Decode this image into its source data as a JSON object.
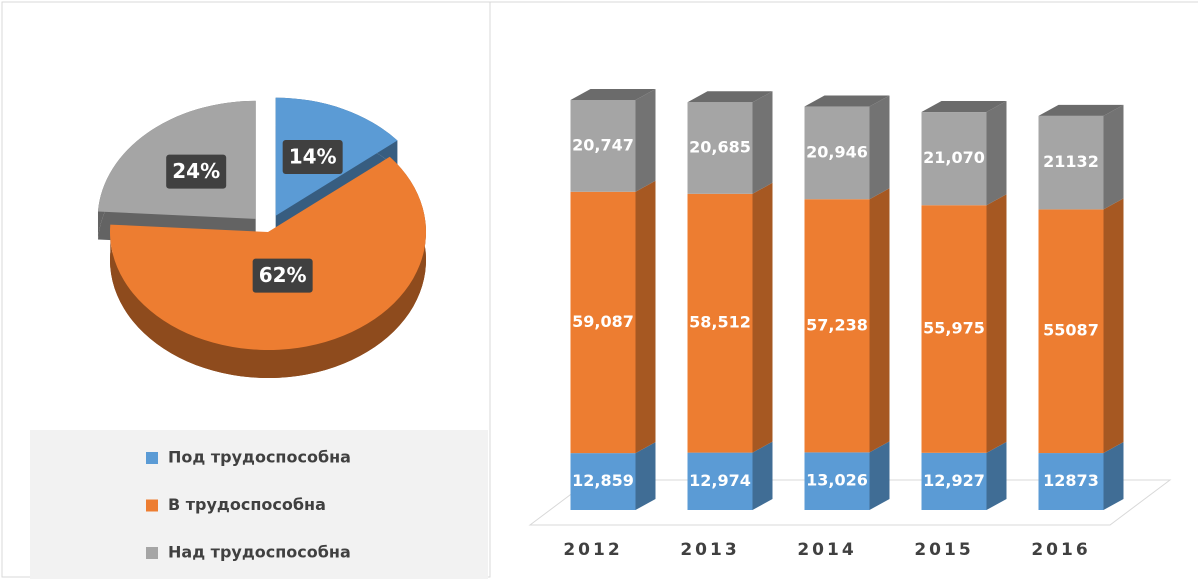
{
  "chart_data": [
    {
      "type": "pie",
      "categories": [
        "Под трудоспособна",
        "В трудоспособна",
        "Над трудоспособна"
      ],
      "values": [
        14,
        62,
        24
      ],
      "value_labels": [
        "14%",
        "62%",
        "24%"
      ],
      "colors": [
        "#5b9bd5",
        "#ed7d31",
        "#a5a5a5"
      ]
    },
    {
      "type": "stacked_bar",
      "categories": [
        "2012",
        "2013",
        "2014",
        "2015",
        "2016"
      ],
      "series": [
        {
          "color": "#5b9bd5",
          "values": [
            12859,
            12974,
            13026,
            12927,
            12873
          ],
          "value_labels": [
            "12,859",
            "12,974",
            "13,026",
            "12,927",
            "12873"
          ]
        },
        {
          "color": "#ed7d31",
          "values": [
            59087,
            58512,
            57238,
            55975,
            55087
          ],
          "value_labels": [
            "59,087",
            "58,512",
            "57,238",
            "55,975",
            "55087"
          ]
        },
        {
          "color": "#a5a5a5",
          "values": [
            20747,
            20685,
            20946,
            21070,
            21132
          ],
          "value_labels": [
            "20,747",
            "20,685",
            "20,946",
            "21,070",
            "21132"
          ]
        }
      ]
    }
  ]
}
